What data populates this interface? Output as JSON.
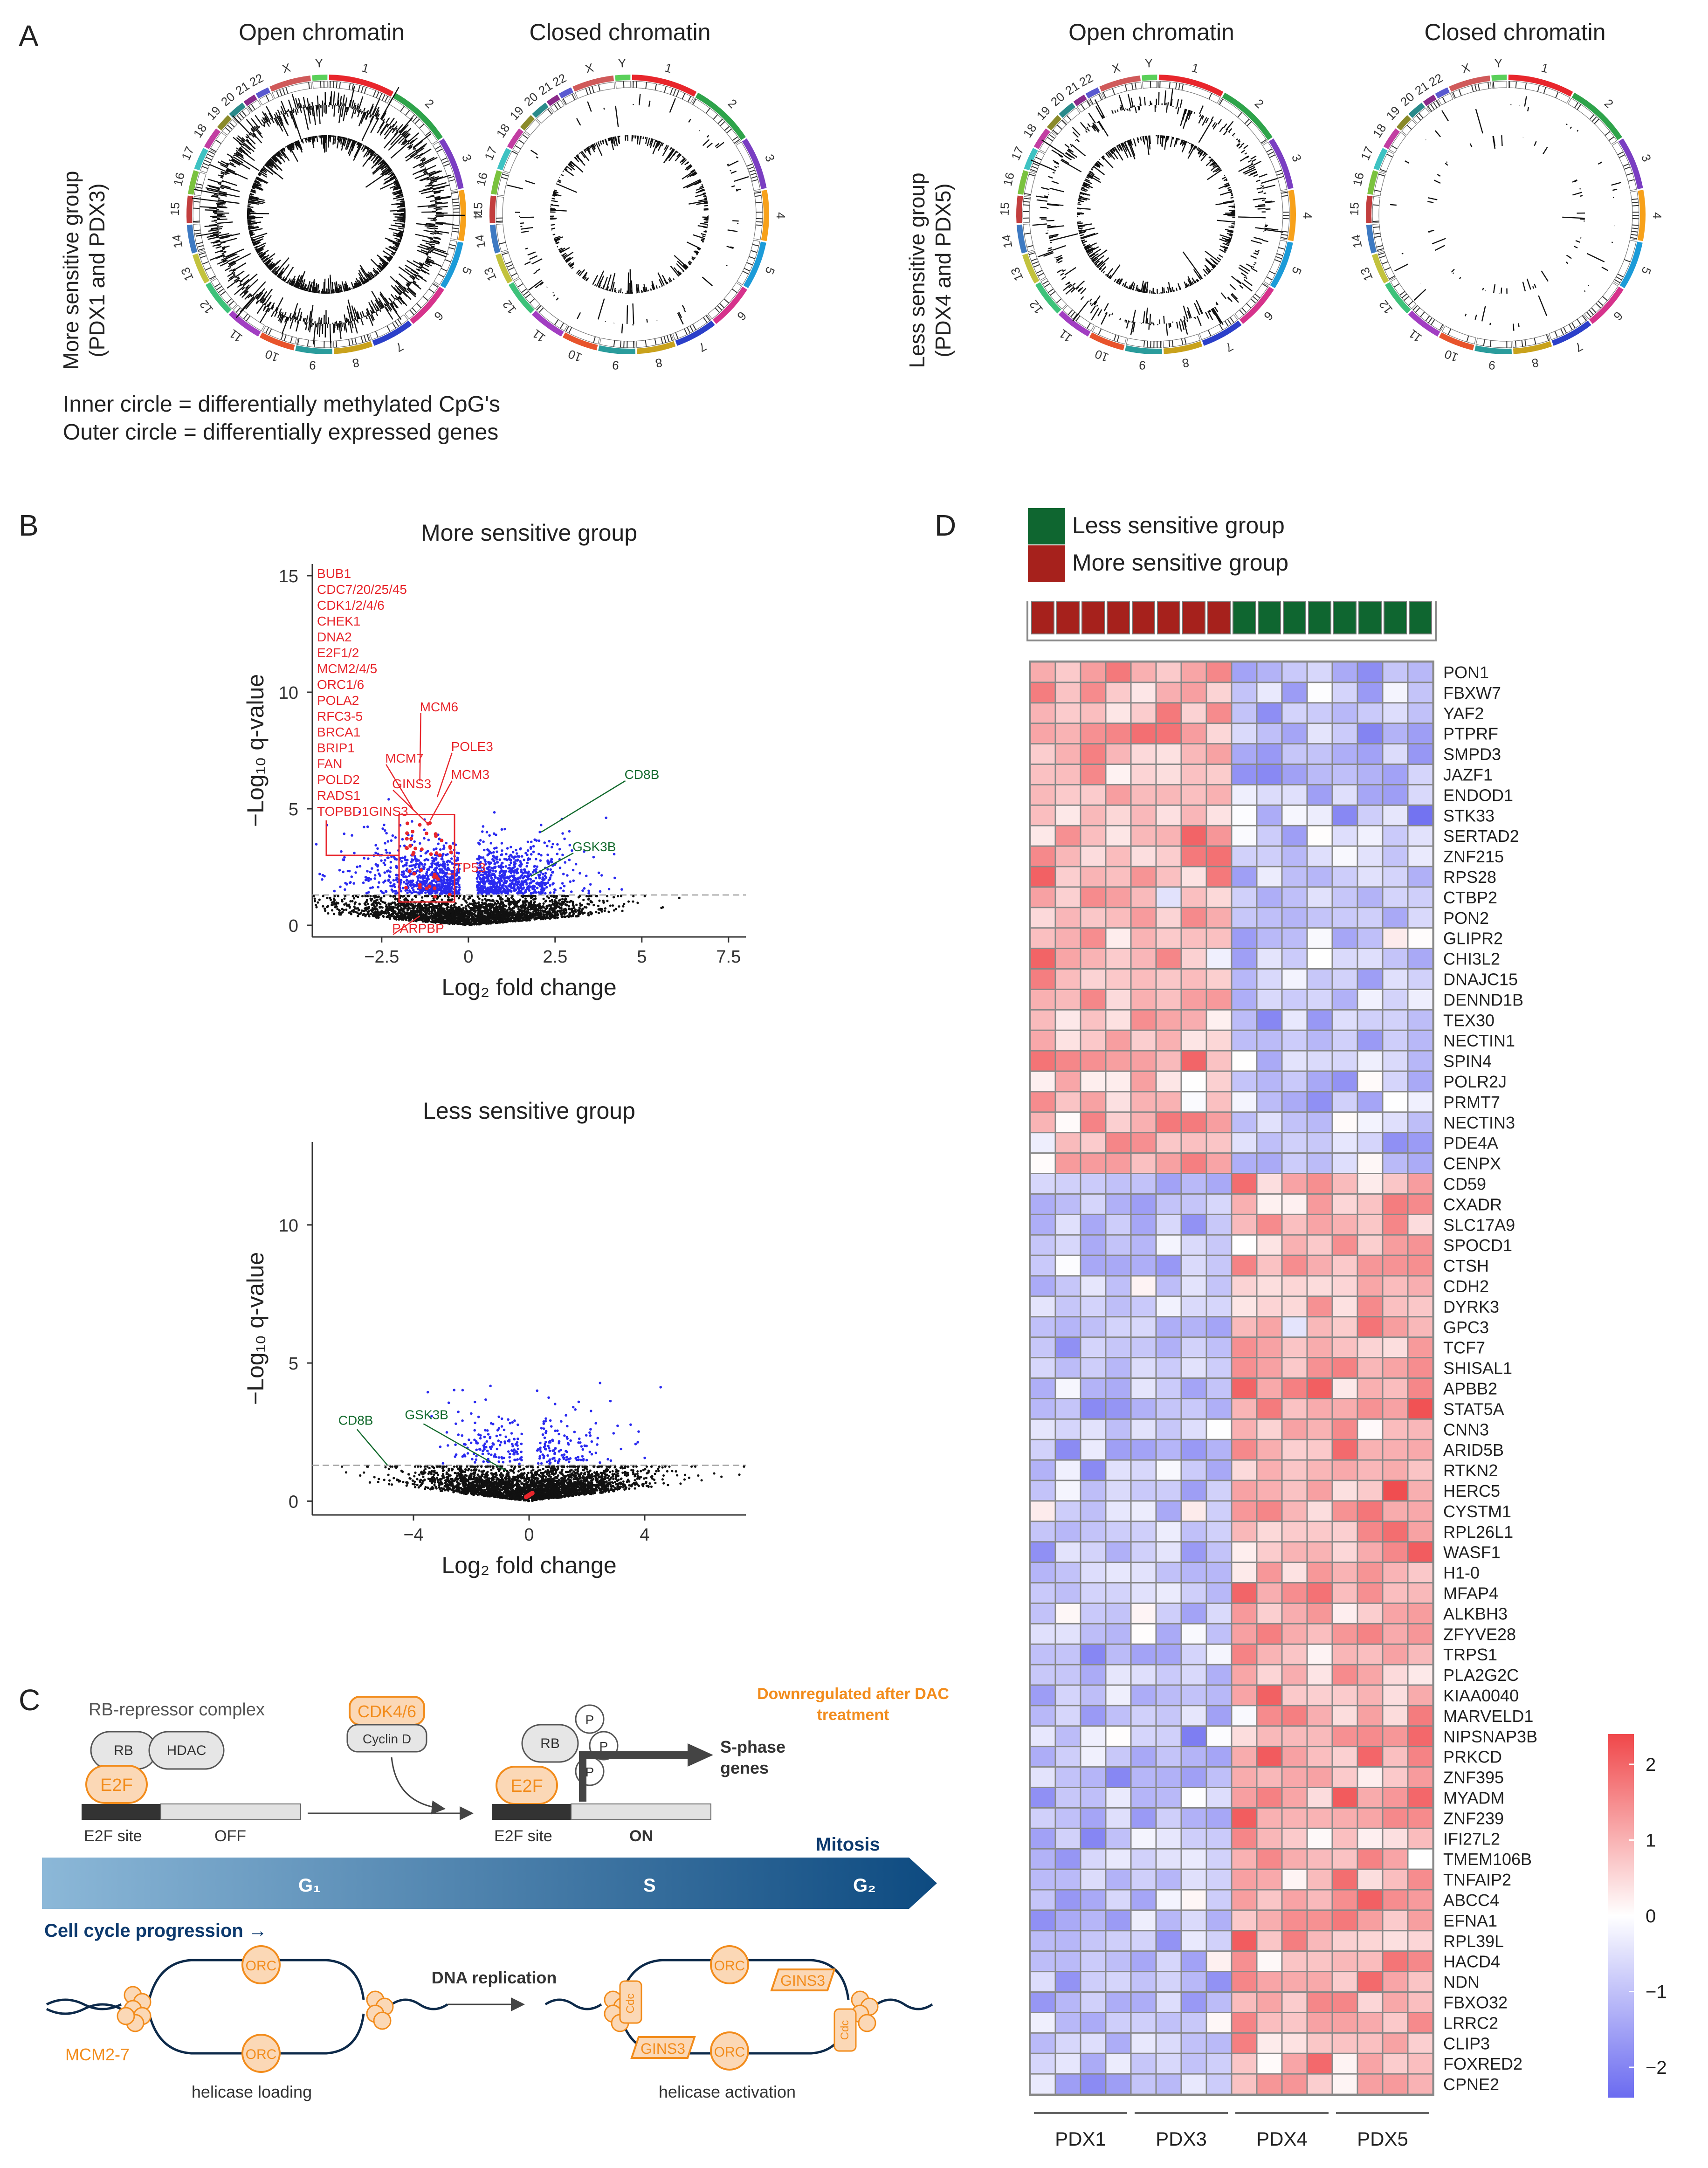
{
  "colors": {
    "red": "#e8262c",
    "green": "#146b2e",
    "blue": "#2a2af0",
    "orange": "#f28c1c",
    "heat_high": "#f0474a",
    "heat_low": "#6b6bf0",
    "more_sensitive": "#a6211c",
    "less_sensitive": "#0f6630",
    "navy": "#0d3a6e"
  },
  "panelA": {
    "label": "A",
    "left_group": "More sensitive group",
    "left_group_sub": "(PDX1 and PDX3)",
    "right_group": "Less sensitive group",
    "right_group_sub": "(PDX4 and PDX5)",
    "open": "Open chromatin",
    "closed": "Closed chromatin",
    "chromosomes": [
      "1",
      "2",
      "3",
      "4",
      "5",
      "6",
      "7",
      "8",
      "9",
      "10",
      "11",
      "12",
      "13",
      "14",
      "15",
      "16",
      "17",
      "18",
      "19",
      "20",
      "21",
      "22",
      "X",
      "Y"
    ],
    "note1": "Inner circle = differentially methylated CpG's",
    "note2": "Outer circle = differentially expressed genes"
  },
  "panelB": {
    "label": "B",
    "top_title": "More sensitive group",
    "bottom_title": "Less sensitive group",
    "xlabel": "Log₂ fold change",
    "ylabel": "-Log₁₀ q-value",
    "gene_list": [
      "BUB1",
      "CDC7/20/25/45",
      "CDK1/2/4/6",
      "CHEK1",
      "DNA2",
      "E2F1/2",
      "MCM2/4/5",
      "ORC1/6",
      "POLA2",
      "RFC3-5",
      "BRCA1",
      "BRIP1",
      "FAN",
      "POLD2",
      "RADS1",
      "TOPBD1GINS3"
    ],
    "top_callouts": {
      "mcm6": "MCM6",
      "pole3": "POLE3",
      "mcm7": "MCM7",
      "gins3": "GINS3",
      "mcm3": "MCM3",
      "tp53": "TP53",
      "parpbp": "PARPBP",
      "cd8b": "CD8B",
      "gsk3b": "GSK3B"
    },
    "bottom_callouts": {
      "cd8b": "CD8B",
      "gsk3b": "GSK3B"
    }
  },
  "chart_data": [
    {
      "type": "scatter",
      "title": "More sensitive group",
      "xlabel": "Log₂ fold change",
      "ylabel": "-Log₁₀ q-value",
      "xlim": [
        -4.5,
        8
      ],
      "ylim": [
        -0.5,
        15.5
      ],
      "xticks": [
        "-2.5",
        "0",
        "2.5",
        "5",
        "7.5"
      ],
      "yticks": [
        "0",
        "5",
        "10",
        "15"
      ],
      "significance_threshold": 1.3,
      "highlighted": [
        {
          "label": "MCM6",
          "x": -1.4,
          "y": 6.2
        },
        {
          "label": "POLE3",
          "x": -0.9,
          "y": 5.5
        },
        {
          "label": "MCM7",
          "x": -1.6,
          "y": 5.0
        },
        {
          "label": "GINS3",
          "x": -1.2,
          "y": 4.0
        },
        {
          "label": "MCM3",
          "x": -1.1,
          "y": 4.5
        },
        {
          "label": "TP53",
          "x": -0.6,
          "y": 2.2
        },
        {
          "label": "PARPBP",
          "x": -1.4,
          "y": 0.4
        },
        {
          "label": "CD8B",
          "x": 2.1,
          "y": 4.0
        },
        {
          "label": "GSK3B",
          "x": 1.8,
          "y": 2.0
        }
      ]
    },
    {
      "type": "scatter",
      "title": "Less sensitive group",
      "xlabel": "Log₂ fold change",
      "ylabel": "-Log₁₀ q-value",
      "xlim": [
        -7.5,
        7.5
      ],
      "ylim": [
        -0.5,
        13
      ],
      "xticks": [
        "-4",
        "0",
        "4"
      ],
      "yticks": [
        "0",
        "5",
        "10"
      ],
      "significance_threshold": 1.3,
      "highlighted": [
        {
          "label": "CD8B",
          "x": -5.5,
          "y": 1.3
        },
        {
          "label": "GSK3B",
          "x": -0.8,
          "y": 1.1
        }
      ]
    },
    {
      "type": "heatmap",
      "legend": [
        "Less sensitive group",
        "More sensitive group"
      ],
      "columns_groups": [
        "PDX1",
        "PDX3",
        "PDX4",
        "PDX5"
      ],
      "scale_ticks": [
        "2",
        "1",
        "0",
        "-1",
        "-2"
      ],
      "genes_up_in_more_sensitive": [
        "PON1",
        "FBXW7",
        "YAF2",
        "PTPRF",
        "SMPD3",
        "JAZF1",
        "ENDOD1",
        "STK33",
        "SERTAD2",
        "ZNF215",
        "RPS28",
        "CTBP2",
        "PON2",
        "GLIPR2",
        "CHI3L2",
        "DNAJC15",
        "DENND1B",
        "TEX30",
        "NECTIN1",
        "SPIN4",
        "POLR2J",
        "PRMT7",
        "NECTIN3",
        "PDE4A",
        "CENPX"
      ],
      "genes_up_in_less_sensitive": [
        "CD59",
        "CXADR",
        "SLC17A9",
        "SPOCD1",
        "CTSH",
        "CDH2",
        "DYRK3",
        "GPC3",
        "TCF7",
        "SHISAL1",
        "APBB2",
        "STAT5A",
        "CNN3",
        "ARID5B",
        "RTKN2",
        "HERC5",
        "CYSTM1",
        "RPL26L1",
        "WASF1",
        "H1-0",
        "MFAP4",
        "ALKBH3",
        "ZFYVE28",
        "TRPS1",
        "PLA2G2C",
        "KIAA0040",
        "MARVELD1",
        "NIPSNAP3B",
        "PRKCD",
        "ZNF395",
        "MYADM",
        "ZNF239",
        "IFI27L2",
        "TMEM106B",
        "TNFAIP2",
        "ABCC4",
        "EFNA1",
        "RPL39L",
        "HACD4",
        "NDN",
        "FBXO32",
        "LRRC2",
        "CLIP3",
        "FOXRED2",
        "CPNE2"
      ]
    }
  ],
  "panelC": {
    "label": "C",
    "rb_complex": "RB-repressor complex",
    "rb": "RB",
    "hdac": "HDAC",
    "e2f": "E2F",
    "e2f_site": "E2F site",
    "off": "OFF",
    "on": "ON",
    "cdk": "CDK4/6",
    "cyclin": "Cyclin D",
    "p": "P",
    "downregulated": "Downregulated after DAC",
    "treatment": "treatment",
    "sphase1": "S-phase",
    "sphase2": "genes",
    "g1": "G₁",
    "s": "S",
    "g2": "G₂",
    "mitosis": "Mitosis",
    "progression": "Cell cycle progression →",
    "orc": "ORC",
    "mcm": "MCM2-7",
    "helicase_loading": "helicase loading",
    "dna_replication": "DNA replication",
    "gins3": "GINS3",
    "cdc": "Cdc",
    "helicase_activation": "helicase activation"
  },
  "panelD": {
    "label": "D",
    "legend_less": "Less sensitive group",
    "legend_more": "More sensitive group",
    "pdx1": "PDX1",
    "pdx3": "PDX3",
    "pdx4": "PDX4",
    "pdx5": "PDX5",
    "scale_2": "2",
    "scale_1": "1",
    "scale_0": "0",
    "scale_m1": "-1",
    "scale_m2": "-2"
  }
}
